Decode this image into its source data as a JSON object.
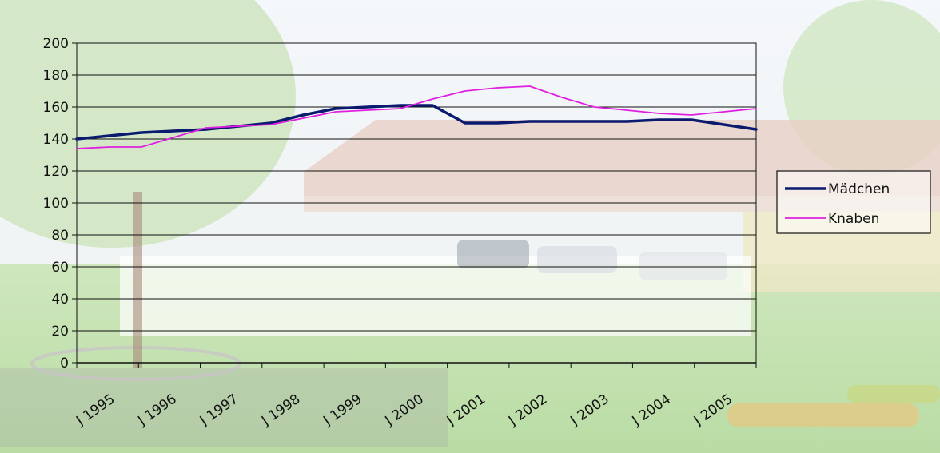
{
  "chart_data": {
    "type": "line",
    "categories": [
      "J 1995",
      "J 1996",
      "J 1997",
      "J 1998",
      "J 1999",
      "J 2000",
      "J 2001",
      "J 2002",
      "J 2003",
      "J 2004",
      "J 2005"
    ],
    "series": [
      {
        "name": "Mädchen",
        "color": "#0a1a6e",
        "x": [
          1995,
          1995.5,
          1996,
          1996.5,
          1997,
          1997.5,
          1998,
          1998.5,
          1999,
          1999.5,
          2000,
          2000.5,
          2001,
          2001.5,
          2002,
          2002.5,
          2003,
          2003.5,
          2004,
          2004.5,
          2005,
          2005.5
        ],
        "y": [
          140,
          142,
          144,
          145,
          146,
          148,
          150,
          155,
          159,
          160,
          161,
          161,
          150,
          150,
          151,
          151,
          151,
          151,
          152,
          152,
          149,
          146
        ]
      },
      {
        "name": "Knaben",
        "color": "#e020e0",
        "x": [
          1995,
          1995.5,
          1996,
          1996.5,
          1997,
          1997.5,
          1998,
          1998.5,
          1999,
          1999.5,
          2000,
          2000.5,
          2001,
          2001.5,
          2002,
          2002.5,
          2003,
          2003.5,
          2004,
          2004.5,
          2005,
          2005.5
        ],
        "y": [
          134,
          135,
          135,
          141,
          147,
          148,
          149,
          153,
          157,
          158,
          159,
          165,
          170,
          172,
          173,
          166,
          160,
          158,
          156,
          155,
          157,
          159
        ]
      }
    ],
    "yticks": [
      "0",
      "20",
      "40",
      "60",
      "80",
      "100",
      "120",
      "140",
      "160",
      "180",
      "200"
    ],
    "ylim": [
      0,
      200
    ],
    "xlim": [
      1995,
      2005.5
    ],
    "grid": true,
    "legend_position": "right"
  }
}
